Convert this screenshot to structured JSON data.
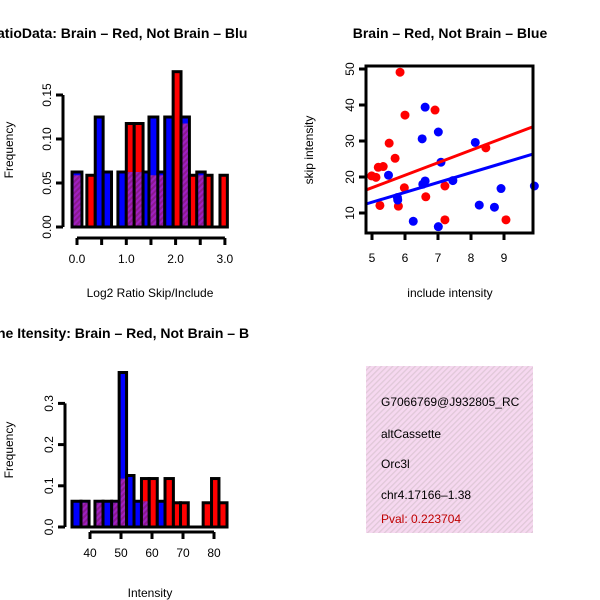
{
  "colors": {
    "red": "#ff0000",
    "blue": "#0000ff",
    "overlap": "#9a1aa6",
    "pval": "#c00000"
  },
  "chart_data": [
    {
      "type": "bar",
      "id": "ratio",
      "title": "atioData: Brain – Red, Not Brain – Blu",
      "xlabel": "Log2 Ratio Skip/Include",
      "ylabel": "Frequency",
      "xticks": [
        "0.0",
        "1.0",
        "2.0",
        "3.0"
      ],
      "xtick_values": [
        0,
        0.5,
        1,
        1.5,
        2,
        2.5,
        3
      ],
      "xtick_labeled": [
        0,
        1,
        2,
        3
      ],
      "yticks": [
        "0.00",
        "0.05",
        "0.10",
        "0.15"
      ],
      "ytick_values": [
        0,
        0.05,
        0.1,
        0.15
      ],
      "series": [
        {
          "name": "Brain",
          "color": "red"
        },
        {
          "name": "Not Brain",
          "color": "blue"
        }
      ],
      "bins": [
        [
          -0.1,
          0.1,
          0.0588,
          0.0625
        ],
        [
          0.2,
          0.37,
          0.0588,
          0
        ],
        [
          0.37,
          0.53,
          0,
          0.125
        ],
        [
          0.53,
          0.7,
          0,
          0.0625
        ],
        [
          0.83,
          1.0,
          0,
          0.0625
        ],
        [
          1.0,
          1.16,
          0.1176,
          0.0625
        ],
        [
          1.16,
          1.34,
          0.1176,
          0.0625
        ],
        [
          1.34,
          1.46,
          0,
          0.0625
        ],
        [
          1.46,
          1.64,
          0.0588,
          0.125
        ],
        [
          1.64,
          1.78,
          0.0588,
          0.0625
        ],
        [
          1.78,
          1.95,
          0,
          0.125
        ],
        [
          1.95,
          2.11,
          0.1765,
          0
        ],
        [
          2.11,
          2.28,
          0.1176,
          0.125
        ],
        [
          2.28,
          2.43,
          0.0588,
          0
        ],
        [
          2.43,
          2.6,
          0.0588,
          0.0625
        ],
        [
          2.6,
          2.74,
          0.0588,
          0
        ],
        [
          2.9,
          3.05,
          0.0588,
          0
        ]
      ]
    },
    {
      "type": "scatter",
      "id": "scatter",
      "title": "Brain – Red, Not Brain – Blue",
      "xlabel": "include intensity",
      "ylabel": "skip intensity",
      "xlim": [
        4.82,
        9.89
      ],
      "ylim": [
        4.4,
        50.8
      ],
      "xticks": [
        "5",
        "6",
        "7",
        "8",
        "9"
      ],
      "xtick_values": [
        5,
        6,
        7,
        8,
        9
      ],
      "yticks": [
        "10",
        "20",
        "30",
        "40",
        "50"
      ],
      "ytick_values": [
        10,
        20,
        30,
        40,
        50
      ],
      "series": [
        {
          "name": "Brain",
          "color": "red",
          "points": [
            [
              5.85,
              49.1
            ],
            [
              6.0,
              37.2
            ],
            [
              6.91,
              38.6
            ],
            [
              5.52,
              29.4
            ],
            [
              5.7,
              25.2
            ],
            [
              5.19,
              22.7
            ],
            [
              5.34,
              22.9
            ],
            [
              4.99,
              20.3
            ],
            [
              5.12,
              19.9
            ],
            [
              5.98,
              17.0
            ],
            [
              5.24,
              12.1
            ],
            [
              5.8,
              11.9
            ],
            [
              6.63,
              14.5
            ],
            [
              7.21,
              17.5
            ],
            [
              8.45,
              28.1
            ],
            [
              7.21,
              8.1
            ],
            [
              9.06,
              8.1
            ]
          ],
          "fit": [
            [
              4.82,
              16.4
            ],
            [
              9.89,
              34.0
            ]
          ]
        },
        {
          "name": "Not Brain",
          "color": "blue",
          "points": [
            [
              6.61,
              39.4
            ],
            [
              7.01,
              32.5
            ],
            [
              6.52,
              30.6
            ],
            [
              8.13,
              29.6
            ],
            [
              7.09,
              24.1
            ],
            [
              5.5,
              20.5
            ],
            [
              6.61,
              18.9
            ],
            [
              6.54,
              18.0
            ],
            [
              7.45,
              19.0
            ],
            [
              5.77,
              14.3
            ],
            [
              5.78,
              13.6
            ],
            [
              8.25,
              12.2
            ],
            [
              8.71,
              11.6
            ],
            [
              8.91,
              16.8
            ],
            [
              9.92,
              17.5
            ],
            [
              6.25,
              7.7
            ],
            [
              7.01,
              6.2
            ]
          ],
          "fit": [
            [
              4.82,
              12.5
            ],
            [
              9.89,
              26.4
            ]
          ]
        }
      ]
    },
    {
      "type": "bar",
      "id": "intensity",
      "title": "ne Itensity: Brain – Red, Not Brain – B",
      "xlabel": "Intensity",
      "ylabel": "Frequency",
      "xticks": [
        "40",
        "50",
        "60",
        "70",
        "80"
      ],
      "xtick_values": [
        40,
        50,
        60,
        70,
        80
      ],
      "xtick_labeled": [
        40,
        50,
        60,
        70,
        80
      ],
      "yticks": [
        "0.0",
        "0.1",
        "0.2",
        "0.3"
      ],
      "ytick_values": [
        0,
        0.1,
        0.2,
        0.3
      ],
      "series": [
        {
          "name": "Brain",
          "color": "red"
        },
        {
          "name": "Not Brain",
          "color": "blue"
        }
      ],
      "bins": [
        [
          34.2,
          37.1,
          0,
          0.0625
        ],
        [
          37.1,
          39.7,
          0.0588,
          0.0625
        ],
        [
          41.6,
          44.2,
          0.0588,
          0.0625
        ],
        [
          44.2,
          47.0,
          0,
          0.0625
        ],
        [
          47.0,
          49.4,
          0.0588,
          0.0625
        ],
        [
          49.4,
          51.8,
          0.1176,
          0.375
        ],
        [
          51.8,
          54.2,
          0,
          0.125
        ],
        [
          54.2,
          56.6,
          0,
          0.0625
        ],
        [
          56.6,
          59.1,
          0.1176,
          0.0625
        ],
        [
          59.1,
          61.7,
          0.1176,
          0
        ],
        [
          61.7,
          64.2,
          0,
          0.0625
        ],
        [
          64.2,
          66.9,
          0.1176,
          0
        ],
        [
          66.9,
          69.2,
          0.0588,
          0
        ],
        [
          69.2,
          71.7,
          0.0588,
          0
        ],
        [
          76.5,
          79.2,
          0.0588,
          0
        ],
        [
          79.2,
          81.6,
          0.1176,
          0
        ],
        [
          81.6,
          84.2,
          0.0588,
          0
        ]
      ]
    }
  ],
  "info": {
    "id": "G7066769@J932805_RC",
    "type": "altCassette",
    "gene": "Orc3l",
    "location": "chr4.17166–1.38",
    "pval": "Pval: 0.223704"
  }
}
